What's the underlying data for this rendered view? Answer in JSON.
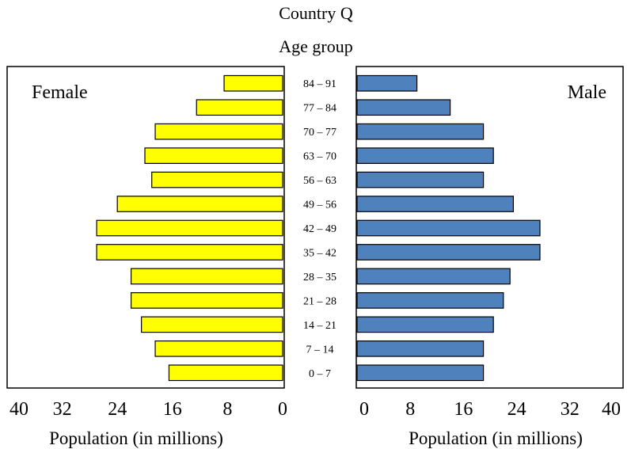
{
  "chart_data": {
    "type": "bar",
    "title": "Country Q",
    "subtitle": "Age group",
    "categories": [
      "84 – 91",
      "77 – 84",
      "70 – 77",
      "63 – 70",
      "56 – 63",
      "49 – 56",
      "42 – 49",
      "35 – 42",
      "28 – 35",
      "21 – 28",
      "14 – 21",
      "7 – 14",
      "0 – 7"
    ],
    "series": [
      {
        "name": "Female",
        "values": [
          8.5,
          12.5,
          18.5,
          20,
          19,
          24,
          27,
          27,
          22,
          22,
          20.5,
          18.5,
          16.5
        ],
        "color": "#ffff00"
      },
      {
        "name": "Male",
        "values": [
          9,
          14,
          19,
          20.5,
          19,
          23.5,
          27.5,
          27.5,
          23,
          22,
          20.5,
          19,
          19
        ],
        "color": "#4f81bd"
      }
    ],
    "female_axis": {
      "label": "Population (in millions)",
      "ticks": [
        40,
        32,
        24,
        16,
        8,
        0
      ],
      "range": [
        0,
        40
      ]
    },
    "male_axis": {
      "label": "Population (in millions)",
      "ticks": [
        0,
        8,
        16,
        24,
        32,
        40
      ],
      "range": [
        0,
        40
      ]
    },
    "grid": false,
    "legend": "inside panels (Female top-left, Male top-right)"
  }
}
